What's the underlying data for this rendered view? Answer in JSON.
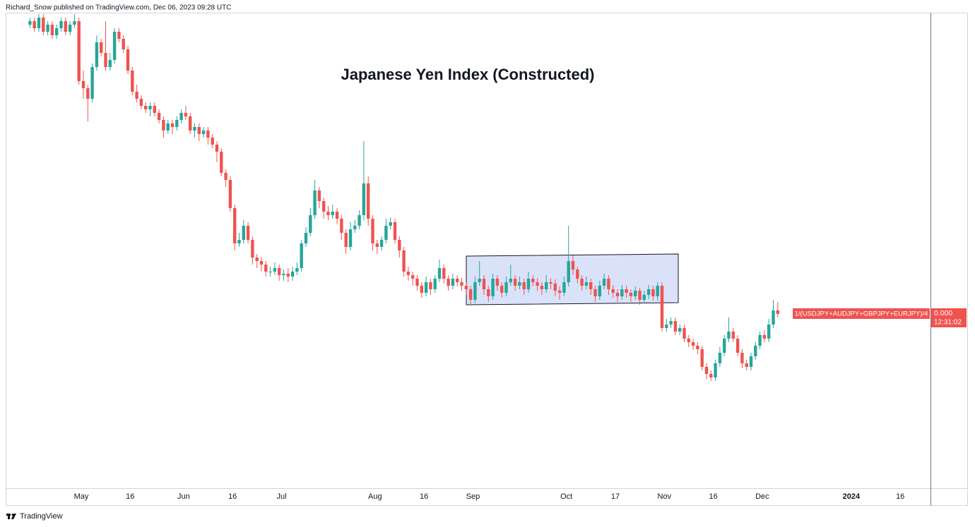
{
  "header": {
    "byline": "Richard_Snow published on TradingView.com, Dec 06, 2023 09:28 UTC"
  },
  "chart_data": {
    "type": "candlestick",
    "title": "Japanese Yen Index (Constructed)",
    "symbol_label": "1/(USDJPY+AUDJPY+GBPJPY+EURJPY)/4",
    "price_label": "0.000",
    "countdown": "12:31:02",
    "up_color": "#26a69a",
    "down_color": "#ef5350",
    "ylim": [
      0,
      670
    ],
    "categories": [
      null,
      null,
      null,
      null,
      null,
      null,
      null,
      null,
      null,
      null,
      null,
      null,
      "May",
      null,
      null,
      null,
      null,
      null,
      null,
      null,
      null,
      null,
      null,
      "16",
      null,
      null,
      null,
      null,
      null,
      null,
      null,
      null,
      null,
      null,
      null,
      "Jun",
      null,
      null,
      null,
      null,
      null,
      null,
      null,
      null,
      null,
      null,
      "16",
      null,
      null,
      null,
      null,
      null,
      null,
      null,
      null,
      null,
      null,
      "Jul",
      null,
      null,
      null,
      null,
      null,
      null,
      null,
      null,
      null,
      null,
      null,
      null,
      null,
      null,
      null,
      null,
      null,
      null,
      null,
      null,
      "Aug",
      null,
      null,
      null,
      null,
      null,
      null,
      null,
      null,
      null,
      null,
      "16",
      null,
      null,
      null,
      null,
      null,
      null,
      null,
      null,
      null,
      null,
      "Sep",
      null,
      null,
      null,
      null,
      null,
      null,
      null,
      null,
      null,
      null,
      null,
      null,
      null,
      null,
      null,
      null,
      null,
      null,
      null,
      null,
      "Oct",
      null,
      null,
      null,
      null,
      null,
      null,
      null,
      null,
      null,
      null,
      "17",
      null,
      null,
      null,
      null,
      null,
      null,
      null,
      null,
      null,
      null,
      "Nov",
      null,
      null,
      null,
      null,
      null,
      null,
      null,
      null,
      null,
      null,
      "16",
      null,
      null,
      null,
      null,
      null,
      null,
      null,
      null,
      null,
      null,
      "Dec",
      null,
      null,
      null,
      null,
      null,
      null,
      null,
      null,
      null,
      null,
      null,
      null,
      null,
      null,
      null,
      null,
      null,
      null,
      null,
      "2024",
      null,
      null,
      null,
      null,
      null,
      null,
      null,
      null,
      null,
      null,
      "16"
    ],
    "open": [
      655,
      660,
      650,
      665,
      645,
      655,
      640,
      650,
      660,
      645,
      655,
      660,
      575,
      565,
      550,
      595,
      630,
      615,
      595,
      605,
      645,
      635,
      620,
      590,
      560,
      550,
      540,
      535,
      540,
      530,
      520,
      505,
      515,
      510,
      520,
      530,
      525,
      505,
      510,
      500,
      505,
      495,
      485,
      475,
      445,
      435,
      395,
      345,
      350,
      370,
      350,
      325,
      320,
      315,
      305,
      305,
      310,
      300,
      302,
      298,
      305,
      310,
      345,
      360,
      385,
      420,
      405,
      390,
      385,
      390,
      380,
      360,
      340,
      365,
      370,
      385,
      430,
      380,
      345,
      340,
      350,
      370,
      375,
      350,
      335,
      305,
      300,
      295,
      285,
      275,
      290,
      280,
      295,
      310,
      295,
      285,
      295,
      290,
      285,
      280,
      265,
      290,
      295,
      280,
      270,
      295,
      285,
      275,
      290,
      295,
      285,
      290,
      280,
      295,
      290,
      285,
      280,
      290,
      288,
      278,
      275,
      290,
      320,
      308,
      295,
      285,
      290,
      280,
      270,
      285,
      295,
      280,
      275,
      270,
      280,
      275,
      270,
      278,
      265,
      272,
      280,
      270,
      285,
      225,
      230,
      235,
      220,
      225,
      210,
      205,
      200,
      195,
      170,
      160,
      155,
      175,
      190,
      210,
      220,
      210,
      190,
      175,
      170,
      185,
      200,
      215,
      210,
      230,
      250,
      null,
      null,
      null,
      null,
      null,
      null,
      null,
      null,
      null,
      null,
      null,
      null,
      null,
      null,
      null,
      null,
      null,
      null,
      null,
      null,
      null,
      null,
      null,
      null,
      null,
      null,
      null,
      null
    ],
    "high": [
      665,
      665,
      670,
      670,
      660,
      660,
      655,
      665,
      665,
      660,
      670,
      665,
      590,
      570,
      600,
      640,
      635,
      660,
      615,
      650,
      650,
      640,
      625,
      595,
      570,
      555,
      545,
      545,
      545,
      535,
      525,
      520,
      520,
      525,
      535,
      540,
      530,
      515,
      515,
      510,
      510,
      500,
      490,
      480,
      450,
      440,
      400,
      360,
      378,
      375,
      355,
      330,
      325,
      320,
      312,
      318,
      315,
      308,
      310,
      312,
      318,
      350,
      368,
      395,
      435,
      425,
      410,
      398,
      400,
      395,
      385,
      365,
      375,
      378,
      392,
      490,
      440,
      385,
      350,
      355,
      380,
      382,
      380,
      355,
      340,
      312,
      305,
      300,
      290,
      298,
      295,
      300,
      322,
      315,
      300,
      302,
      300,
      296,
      290,
      285,
      298,
      320,
      300,
      285,
      302,
      300,
      290,
      298,
      315,
      300,
      298,
      295,
      305,
      300,
      296,
      290,
      300,
      296,
      294,
      284,
      298,
      370,
      328,
      312,
      300,
      298,
      295,
      285,
      292,
      302,
      300,
      286,
      280,
      286,
      285,
      280,
      284,
      282,
      278,
      286,
      285,
      290,
      290,
      238,
      240,
      240,
      230,
      230,
      215,
      210,
      205,
      200,
      175,
      165,
      180,
      198,
      215,
      240,
      225,
      215,
      195,
      180,
      190,
      205,
      220,
      222,
      238,
      265,
      262,
      null,
      null,
      null,
      null,
      null,
      null,
      null,
      null,
      null,
      null,
      null,
      null,
      null,
      null,
      null,
      null,
      null,
      null,
      null,
      null,
      null,
      null,
      null,
      null,
      null,
      null,
      null,
      null
    ],
    "low": [
      650,
      645,
      645,
      640,
      640,
      635,
      635,
      645,
      640,
      640,
      650,
      570,
      550,
      518,
      545,
      590,
      610,
      590,
      590,
      600,
      630,
      615,
      585,
      555,
      545,
      535,
      530,
      525,
      525,
      515,
      495,
      500,
      500,
      505,
      515,
      520,
      500,
      495,
      490,
      495,
      485,
      480,
      460,
      440,
      425,
      390,
      335,
      340,
      345,
      345,
      315,
      310,
      305,
      298,
      298,
      300,
      292,
      292,
      290,
      292,
      300,
      305,
      340,
      355,
      380,
      395,
      380,
      378,
      380,
      372,
      350,
      330,
      335,
      360,
      365,
      378,
      370,
      335,
      330,
      335,
      345,
      365,
      345,
      325,
      298,
      292,
      285,
      278,
      268,
      270,
      272,
      275,
      290,
      288,
      278,
      280,
      284,
      278,
      272,
      258,
      260,
      285,
      272,
      262,
      265,
      278,
      268,
      270,
      285,
      278,
      280,
      272,
      275,
      284,
      278,
      272,
      275,
      280,
      270,
      265,
      270,
      284,
      300,
      288,
      278,
      280,
      272,
      262,
      265,
      280,
      272,
      268,
      262,
      265,
      268,
      262,
      265,
      258,
      260,
      266,
      264,
      264,
      220,
      220,
      225,
      215,
      215,
      205,
      198,
      194,
      188,
      165,
      152,
      150,
      150,
      170,
      185,
      205,
      205,
      185,
      168,
      165,
      165,
      180,
      195,
      205,
      205,
      225,
      240,
      null,
      null,
      null,
      null,
      null,
      null,
      null,
      null,
      null,
      null,
      null,
      null,
      null,
      null,
      null,
      null,
      null,
      null,
      null,
      null,
      null,
      null,
      null,
      null,
      null,
      null,
      null,
      null
    ],
    "close": [
      660,
      650,
      665,
      645,
      655,
      640,
      650,
      660,
      645,
      655,
      660,
      575,
      565,
      550,
      595,
      630,
      615,
      595,
      605,
      645,
      635,
      620,
      590,
      560,
      550,
      540,
      535,
      540,
      530,
      520,
      505,
      515,
      510,
      520,
      530,
      525,
      505,
      510,
      500,
      505,
      495,
      485,
      475,
      445,
      435,
      395,
      345,
      350,
      370,
      350,
      325,
      320,
      315,
      305,
      305,
      310,
      300,
      302,
      298,
      305,
      310,
      345,
      360,
      385,
      420,
      405,
      390,
      385,
      390,
      380,
      360,
      340,
      365,
      370,
      385,
      430,
      380,
      345,
      340,
      350,
      370,
      375,
      350,
      335,
      305,
      300,
      295,
      285,
      275,
      290,
      280,
      295,
      310,
      295,
      285,
      295,
      290,
      285,
      280,
      265,
      290,
      295,
      280,
      270,
      295,
      285,
      275,
      290,
      295,
      285,
      290,
      280,
      295,
      290,
      285,
      280,
      290,
      288,
      278,
      275,
      290,
      320,
      308,
      295,
      285,
      290,
      280,
      270,
      285,
      295,
      280,
      275,
      270,
      280,
      275,
      270,
      278,
      265,
      272,
      280,
      270,
      285,
      225,
      230,
      235,
      220,
      225,
      210,
      205,
      200,
      195,
      170,
      160,
      155,
      175,
      190,
      210,
      220,
      210,
      190,
      175,
      170,
      185,
      200,
      215,
      210,
      230,
      250,
      245,
      null,
      null,
      null,
      null,
      null,
      null,
      null,
      null,
      null,
      null,
      null,
      null,
      null,
      null,
      null,
      null,
      null,
      null,
      null,
      null,
      null,
      null,
      null,
      null,
      null,
      null,
      null,
      null
    ]
  },
  "footer": {
    "brand": "TradingView"
  }
}
